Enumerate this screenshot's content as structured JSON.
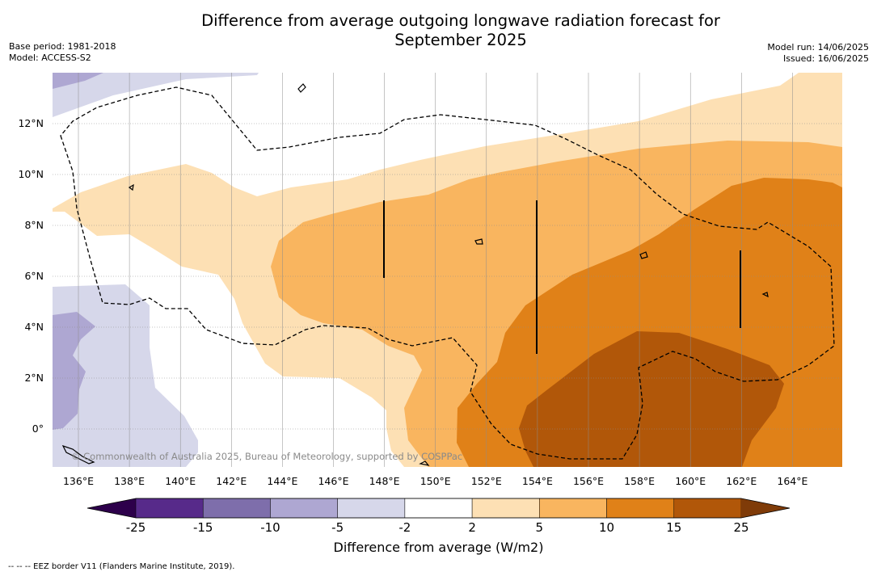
{
  "title_line1": "Difference from average outgoing longwave radiation forecast for",
  "title_line2": "September 2025",
  "base_period": "Base period: 1981-2018",
  "model": "Model: ACCESS-S2",
  "model_run": "Model run: 14/06/2025",
  "issued": "Issued: 16/06/2025",
  "copyright": "© Commonwealth of Australia 2025, Bureau of Meteorology, supported by COSPPac",
  "colorbar": {
    "label": "Difference from average (W/m2)",
    "ticks": [
      "-25",
      "-15",
      "-10",
      "-5",
      "-2",
      "2",
      "5",
      "10",
      "15",
      "25"
    ],
    "colors": [
      "#572a8a",
      "#7e6eab",
      "#aea7d2",
      "#d6d7ea",
      "#ffffff",
      "#fde0b4",
      "#f9b55f",
      "#e08118",
      "#b15709"
    ],
    "extend_low_color": "#2d004b",
    "extend_high_color": "#7f3b08"
  },
  "footnote": "--  --  -- EEZ border V11 (Flanders Marine Institute, 2019).",
  "x_axis": {
    "labels": [
      "136°E",
      "138°E",
      "140°E",
      "142°E",
      "144°E",
      "146°E",
      "148°E",
      "150°E",
      "152°E",
      "154°E",
      "156°E",
      "158°E",
      "160°E",
      "162°E",
      "164°E"
    ]
  },
  "y_axis": {
    "labels": [
      "12°N",
      "10°N",
      "8°N",
      "6°N",
      "4°N",
      "2°N",
      "0°"
    ]
  }
}
